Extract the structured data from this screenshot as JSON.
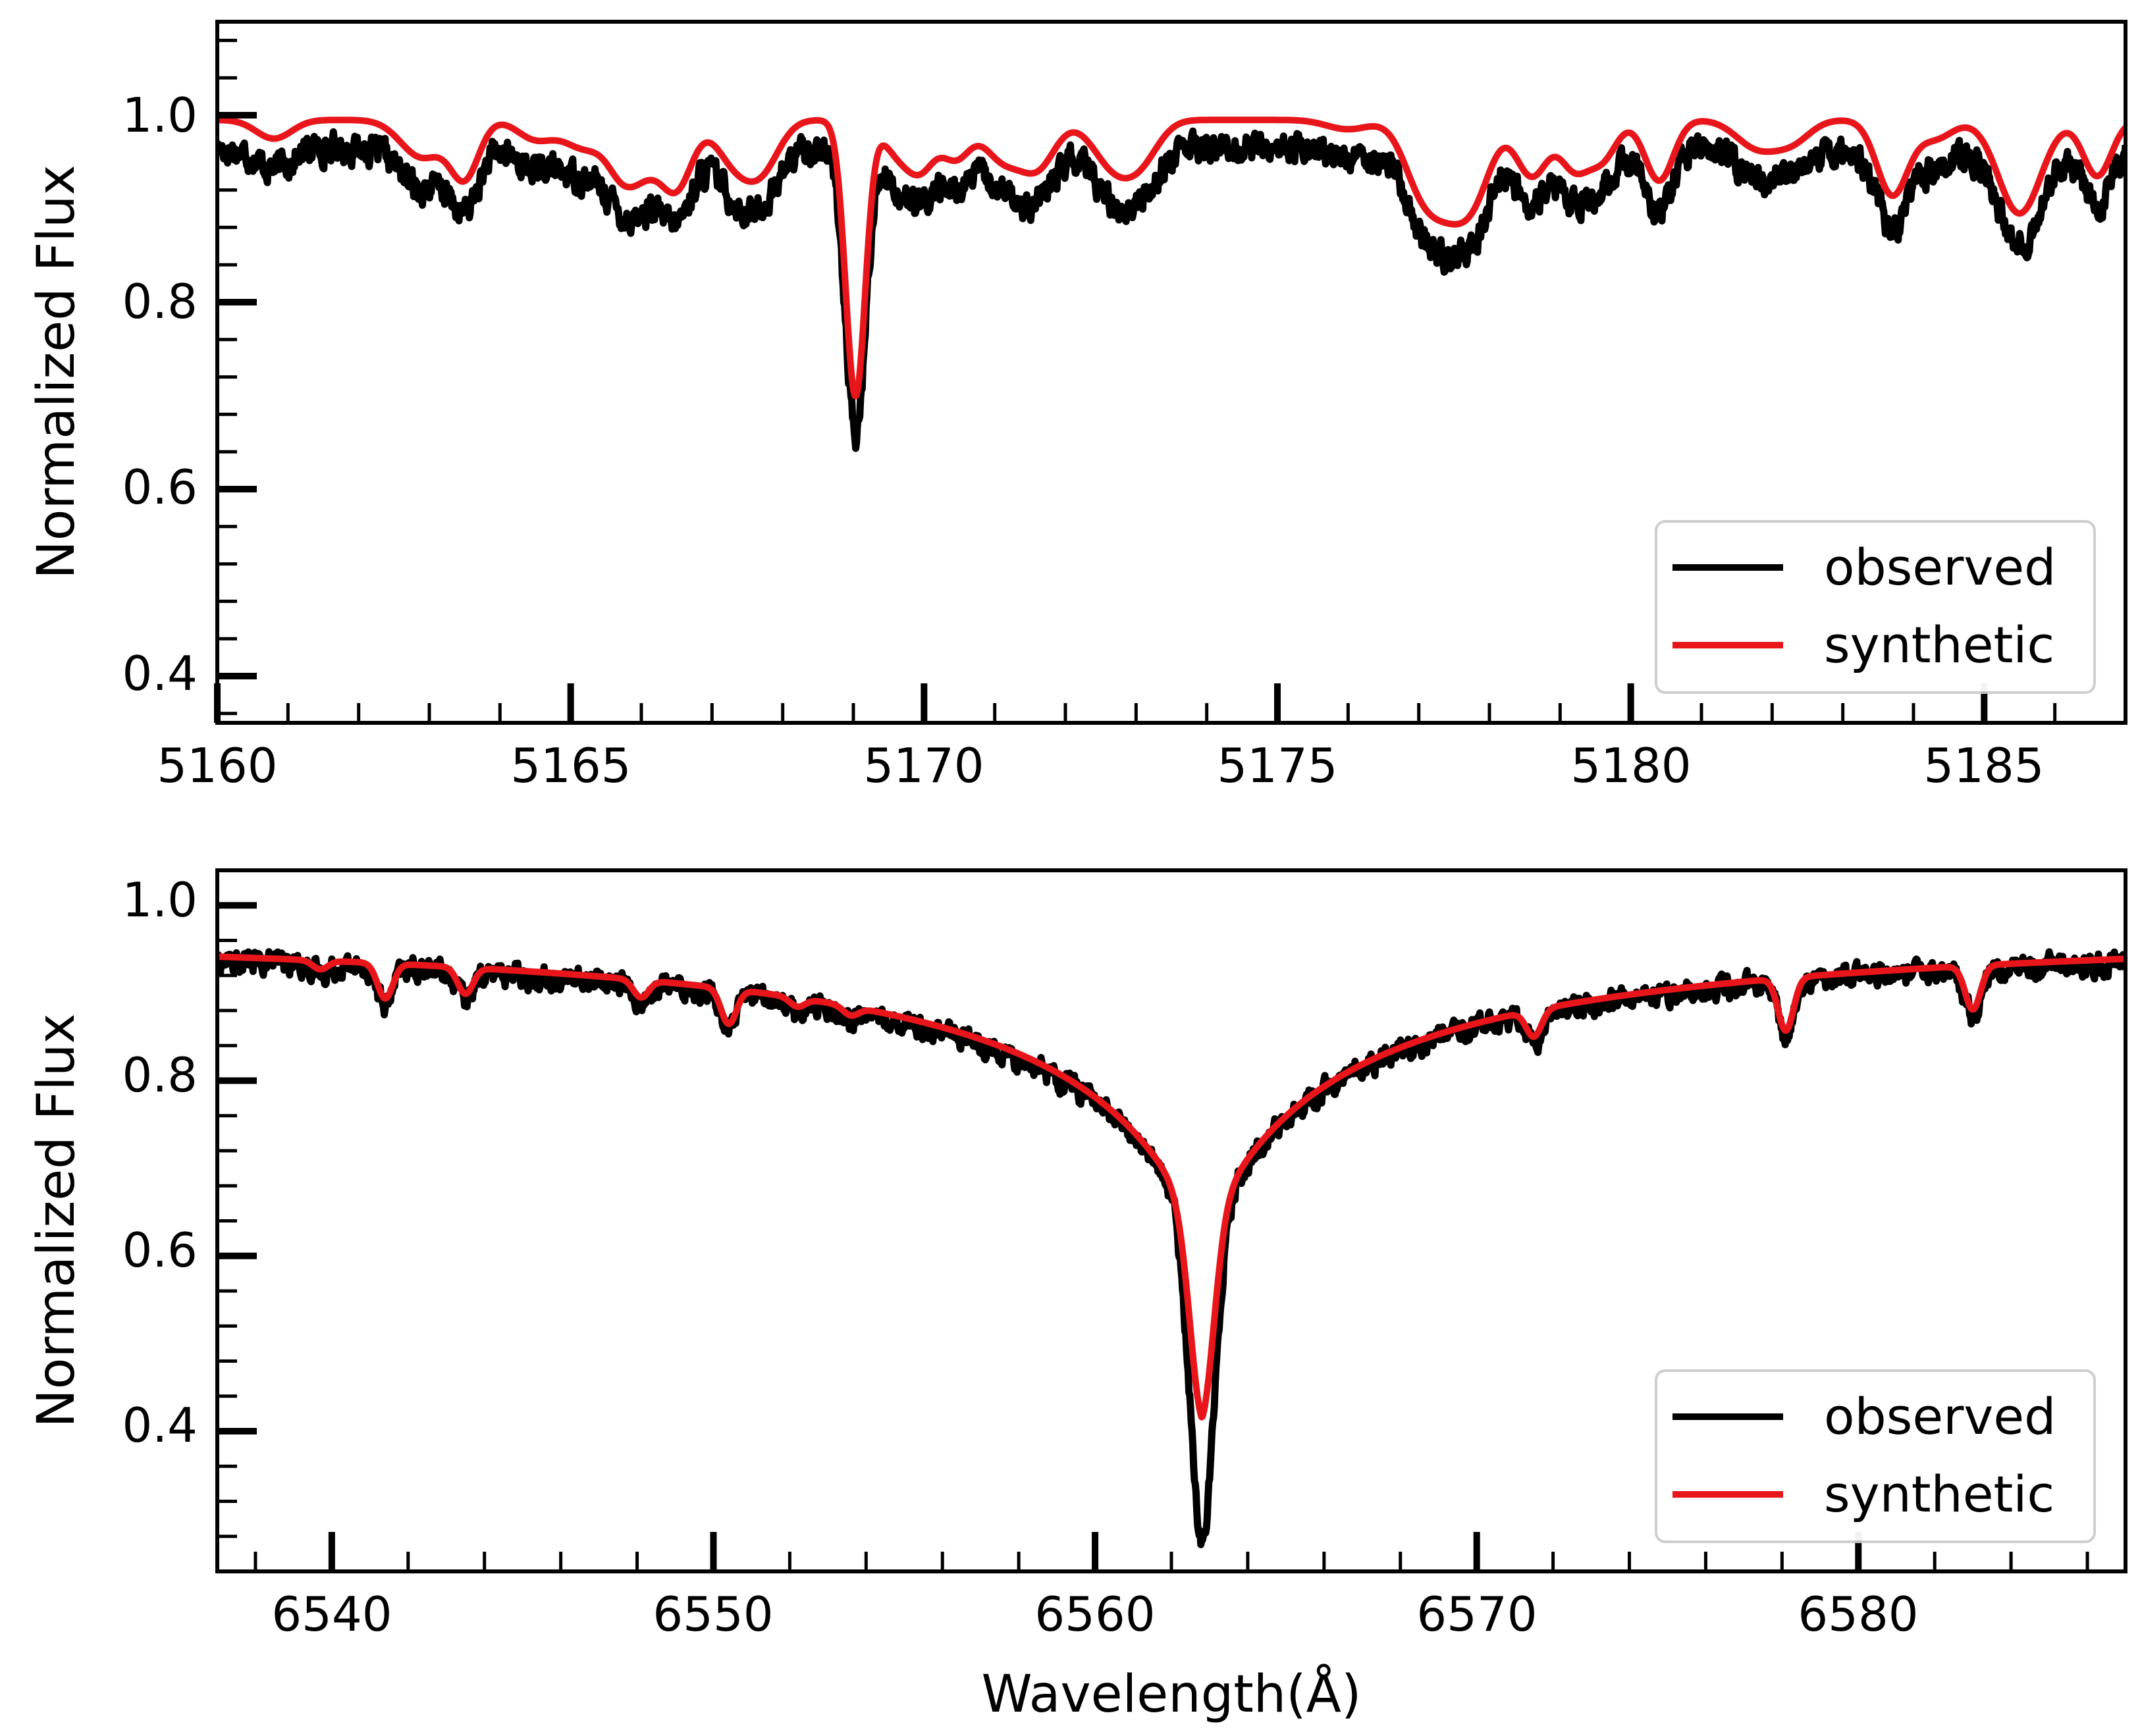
{
  "chart_data": [
    {
      "type": "line",
      "panel": "top",
      "xlabel": "",
      "ylabel": "Normalized Flux",
      "xlim": [
        5160,
        5187
      ],
      "ylim": [
        0.35,
        1.1
      ],
      "xticks": [
        5160,
        5165,
        5170,
        5175,
        5180,
        5185
      ],
      "xtick_labels": [
        "5160",
        "5165",
        "5170",
        "5175",
        "5180",
        "5185"
      ],
      "yticks": [
        0.4,
        0.6,
        0.8,
        1.0
      ],
      "ytick_labels": [
        "0.4",
        "0.6",
        "0.8",
        "1.0"
      ],
      "legend": {
        "position": "lower-right",
        "entries": [
          "observed",
          "synthetic"
        ]
      },
      "continuum": 0.98,
      "series": [
        {
          "name": "observed",
          "color": "#000000",
          "noise": 0.012,
          "continuum": 0.965
        },
        {
          "name": "synthetic",
          "color": "#e8161b",
          "noise": 0,
          "continuum": 0.995
        }
      ],
      "lines": [
        {
          "center": 5160.8,
          "depth": 0.02,
          "width": 0.25
        },
        {
          "center": 5162.9,
          "depth": 0.04,
          "width": 0.3
        },
        {
          "center": 5163.5,
          "depth": 0.06,
          "width": 0.2
        },
        {
          "center": 5164.5,
          "depth": 0.02,
          "width": 0.25
        },
        {
          "center": 5165.2,
          "depth": 0.03,
          "width": 0.3
        },
        {
          "center": 5165.7,
          "depth": 0.035,
          "width": 0.2
        },
        {
          "center": 5166.0,
          "depth": 0.05,
          "width": 0.25
        },
        {
          "center": 5166.5,
          "depth": 0.07,
          "width": 0.22
        },
        {
          "center": 5167.3,
          "depth": 0.04,
          "width": 0.25
        },
        {
          "center": 5167.7,
          "depth": 0.05,
          "width": 0.25
        },
        {
          "center": 5169.03,
          "depth": 0.295,
          "width": 0.14
        },
        {
          "center": 5169.6,
          "depth": 0.03,
          "width": 0.2
        },
        {
          "center": 5169.95,
          "depth": 0.05,
          "width": 0.2
        },
        {
          "center": 5170.45,
          "depth": 0.04,
          "width": 0.2
        },
        {
          "center": 5171.1,
          "depth": 0.04,
          "width": 0.25
        },
        {
          "center": 5171.6,
          "depth": 0.05,
          "width": 0.25
        },
        {
          "center": 5172.7,
          "depth": 0.05,
          "width": 0.3
        },
        {
          "center": 5173.1,
          "depth": 0.03,
          "width": 0.25
        },
        {
          "center": 5176.0,
          "depth": 0.01,
          "width": 0.3
        },
        {
          "center": 5177.0,
          "depth": 0.05,
          "width": 0.25
        },
        {
          "center": 5177.4,
          "depth": 0.08,
          "width": 0.3
        },
        {
          "center": 5177.8,
          "depth": 0.06,
          "width": 0.25
        },
        {
          "center": 5178.6,
          "depth": 0.06,
          "width": 0.22
        },
        {
          "center": 5179.2,
          "depth": 0.05,
          "width": 0.2
        },
        {
          "center": 5179.6,
          "depth": 0.04,
          "width": 0.2
        },
        {
          "center": 5180.4,
          "depth": 0.065,
          "width": 0.2
        },
        {
          "center": 5181.8,
          "depth": 0.03,
          "width": 0.3
        },
        {
          "center": 5182.3,
          "depth": 0.02,
          "width": 0.25
        },
        {
          "center": 5183.7,
          "depth": 0.08,
          "width": 0.22
        },
        {
          "center": 5184.3,
          "depth": 0.02,
          "width": 0.25
        },
        {
          "center": 5185.5,
          "depth": 0.1,
          "width": 0.3
        },
        {
          "center": 5186.6,
          "depth": 0.06,
          "width": 0.2
        }
      ],
      "wings": []
    },
    {
      "type": "line",
      "panel": "bottom",
      "xlabel": "Wavelength(Å)",
      "ylabel": "Normalized Flux",
      "xlim": [
        6537,
        6587
      ],
      "ylim": [
        0.24,
        1.04
      ],
      "xticks": [
        6540,
        6550,
        6560,
        6570,
        6580
      ],
      "xtick_labels": [
        "6540",
        "6550",
        "6560",
        "6570",
        "6580"
      ],
      "yticks": [
        0.4,
        0.6,
        0.8,
        1.0
      ],
      "ytick_labels": [
        "0.4",
        "0.6",
        "0.8",
        "1.0"
      ],
      "legend": {
        "position": "lower-right",
        "entries": [
          "observed",
          "synthetic"
        ]
      },
      "continuum": 0.985,
      "series": [
        {
          "name": "observed",
          "color": "#000000",
          "noise": 0.01,
          "continuum": 0.98,
          "core_depth": 0.71
        },
        {
          "name": "synthetic",
          "color": "#e8161b",
          "noise": 0,
          "continuum": 0.985,
          "core_depth": 0.57
        }
      ],
      "lines": [
        {
          "center": 6539.7,
          "depth": 0.01,
          "width": 0.2
        },
        {
          "center": 6541.4,
          "depth": 0.04,
          "width": 0.2
        },
        {
          "center": 6543.5,
          "depth": 0.03,
          "width": 0.2
        },
        {
          "center": 6548.1,
          "depth": 0.02,
          "width": 0.2
        },
        {
          "center": 6550.4,
          "depth": 0.04,
          "width": 0.2
        },
        {
          "center": 6552.2,
          "depth": 0.01,
          "width": 0.2
        },
        {
          "center": 6553.6,
          "depth": 0.01,
          "width": 0.2
        },
        {
          "center": 6571.5,
          "depth": 0.03,
          "width": 0.2
        },
        {
          "center": 6578.1,
          "depth": 0.06,
          "width": 0.2
        },
        {
          "center": 6583.0,
          "depth": 0.05,
          "width": 0.2
        }
      ],
      "wings": [
        {
          "center": 6562.8,
          "depth": 0.37,
          "scale": 5.5
        },
        {
          "center": 6562.8,
          "depth": 0.2,
          "width": 0.32
        }
      ]
    }
  ]
}
